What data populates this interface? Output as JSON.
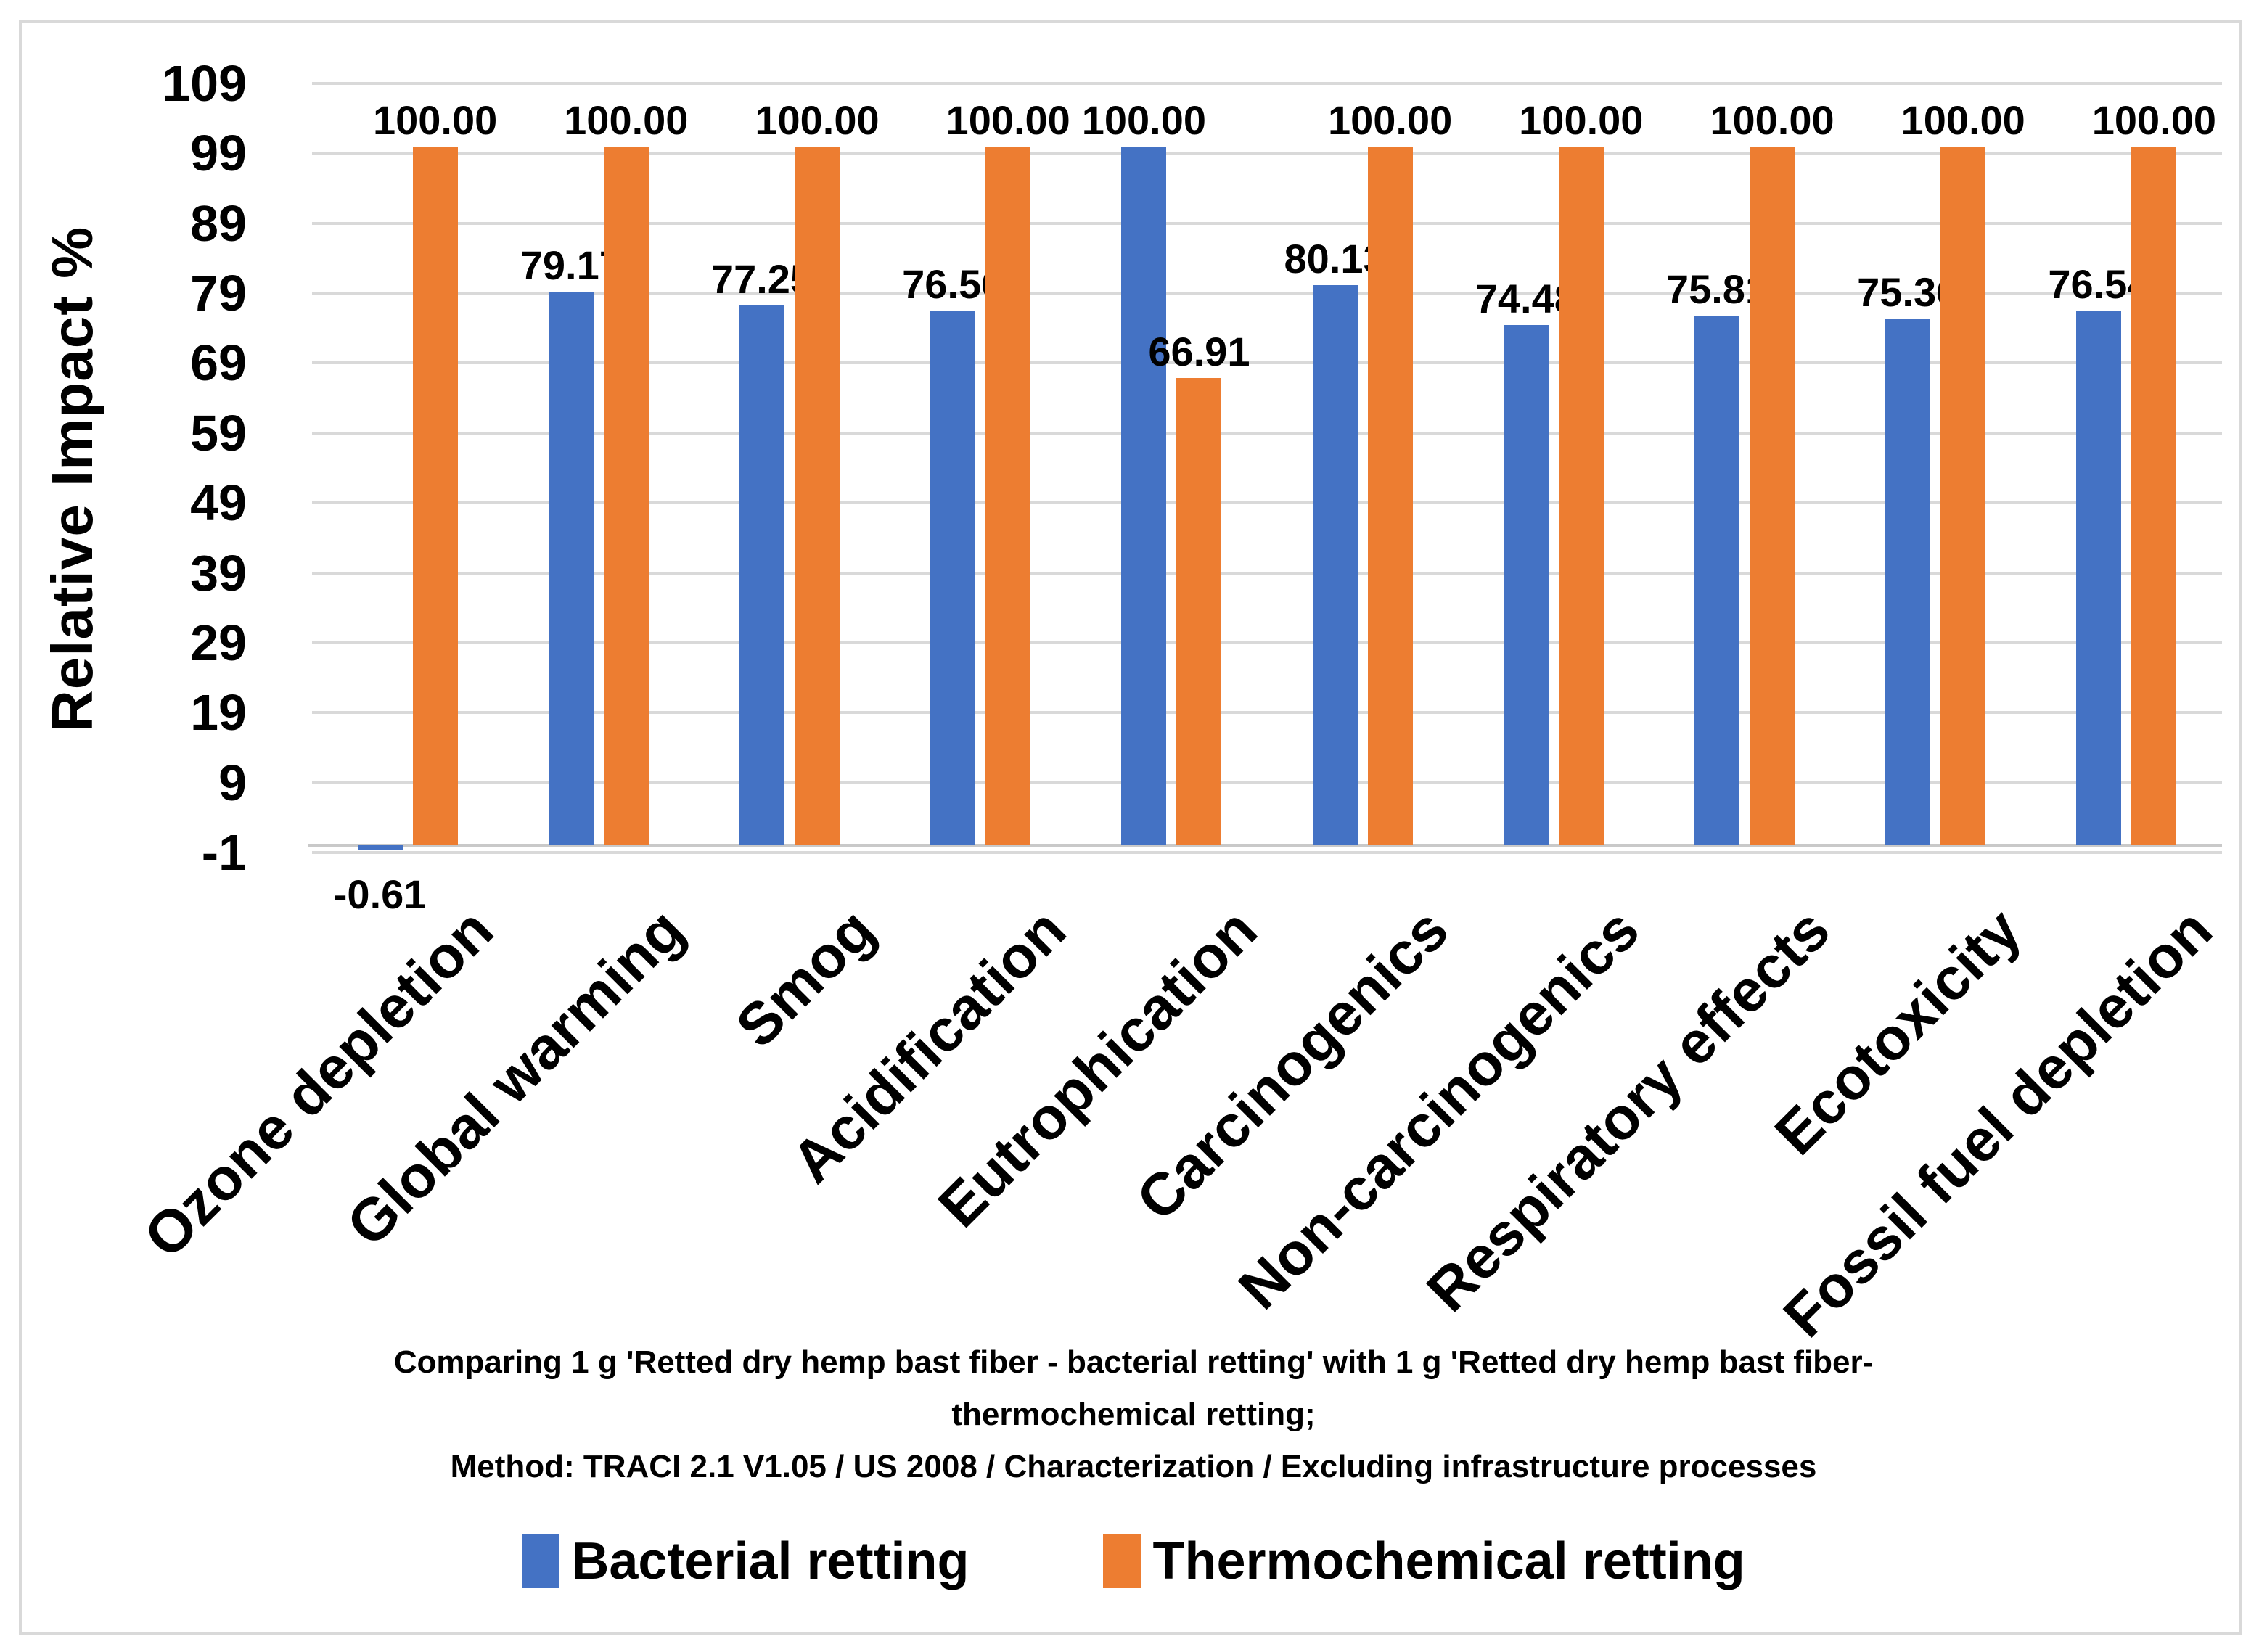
{
  "window": {
    "background": "#FFFFFF",
    "border_color": "#D9D9D9"
  },
  "chart_data": {
    "type": "bar",
    "title": "",
    "ylabel": "Relative Impact %",
    "xlabel": "",
    "ylim": [
      -1,
      109
    ],
    "ytick_step": 10,
    "yticks": [
      109,
      99,
      89,
      79,
      69,
      59,
      49,
      39,
      29,
      19,
      9,
      -1
    ],
    "grid": true,
    "gridline_color": "#D9D9D9",
    "axis_line_color": "#C9C9C9",
    "legend_position": "bottom",
    "data_label_decimals": 2,
    "categories": [
      "Ozone depletion",
      "Global warming",
      "Smog",
      "Acidification",
      "Eutrophication",
      "Carcinogenics",
      "Non-carcinogenics",
      "Respiratory effects",
      "Ecotoxicity",
      "Fossil fuel depletion"
    ],
    "series": [
      {
        "name": "Bacterial retting",
        "color": "#4472C4",
        "values": [
          -0.61,
          79.17,
          77.25,
          76.56,
          100.0,
          80.13,
          74.48,
          75.81,
          75.36,
          76.54
        ]
      },
      {
        "name": "Thermochemical retting",
        "color": "#ED7D31",
        "values": [
          100.0,
          100.0,
          100.0,
          100.0,
          66.91,
          100.0,
          100.0,
          100.0,
          100.0,
          100.0
        ]
      }
    ],
    "caption_lines": [
      "Comparing 1 g 'Retted dry hemp bast fiber - bacterial retting' with 1 g 'Retted dry hemp bast fiber-",
      "thermochemical retting;",
      "Method: TRACI 2.1 V1.05 / US 2008 / Characterization / Excluding infrastructure processes"
    ]
  }
}
